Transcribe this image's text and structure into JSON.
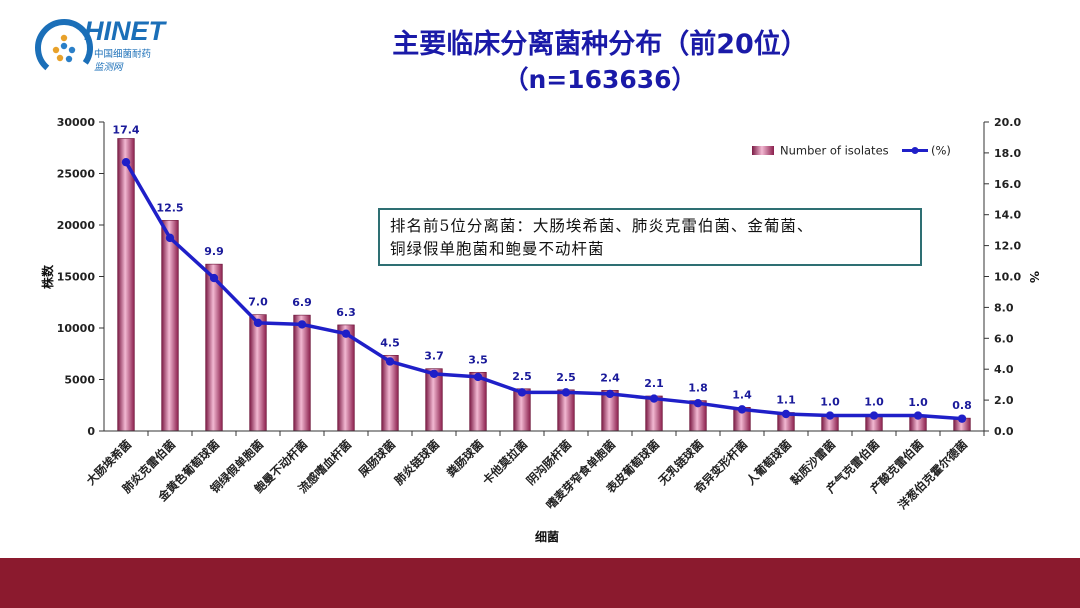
{
  "logo": {
    "brand": "HINET",
    "cn_name": "中国细菌耐药",
    "cn_sub": "监测网"
  },
  "title": {
    "line1": "主要临床分离菌种分布（前20位）",
    "line2": "（n=163636）"
  },
  "annotation": {
    "line1": "排名前5位分离菌：大肠埃希菌、肺炎克雷伯菌、金葡菌、",
    "line2": "铜绿假单胞菌和鲍曼不动杆菌"
  },
  "colors": {
    "bar": "#d98fb0",
    "bar_dark": "#8a1f4c",
    "line": "#1f1fc8",
    "title": "#1a1aa8",
    "band": "#8b1a2e"
  },
  "chart_data": {
    "type": "bar",
    "categories": [
      "大肠埃希菌",
      "肺炎克雷伯菌",
      "金黄色葡萄球菌",
      "铜绿假单胞菌",
      "鲍曼不动杆菌",
      "流感嗜血杆菌",
      "屎肠球菌",
      "肺炎链球菌",
      "粪肠球菌",
      "卡他莫拉菌",
      "阴沟肠杆菌",
      "嗜麦芽窄食单胞菌",
      "表皮葡萄球菌",
      "无乳链球菌",
      "奇异变形杆菌",
      "人葡萄球菌",
      "黏质沙雷菌",
      "产气克雷伯菌",
      "产酸克雷伯菌",
      "洋葱伯克霍尔德菌"
    ],
    "series": [
      {
        "name": "Number of isolates",
        "type": "bar",
        "axis": "left",
        "values": [
          28400,
          20450,
          16200,
          11300,
          11250,
          10300,
          7350,
          6050,
          5700,
          4100,
          4000,
          3950,
          3400,
          2950,
          2300,
          1800,
          1600,
          1600,
          1550,
          1250
        ]
      },
      {
        "name": "(%)",
        "type": "line",
        "axis": "right",
        "values": [
          17.4,
          12.5,
          9.9,
          7.0,
          6.9,
          6.3,
          4.5,
          3.7,
          3.5,
          2.5,
          2.5,
          2.4,
          2.1,
          1.8,
          1.4,
          1.1,
          1.0,
          1.0,
          1.0,
          0.8
        ]
      }
    ],
    "data_labels": [
      "17.4",
      "12.5",
      "9.9",
      "7.0",
      "6.9",
      "6.3",
      "4.5",
      "3.7",
      "3.5",
      "2.5",
      "2.5",
      "2.4",
      "2.1",
      "1.8",
      "1.4",
      "1.1",
      "1.0",
      "1.0",
      "1.0",
      "0.8"
    ],
    "xlabel": "细菌",
    "ylabel": "株数",
    "y2label": "%",
    "ylim": [
      0,
      30000
    ],
    "y2lim": [
      0,
      20
    ],
    "yticks": [
      "0",
      "5000",
      "10000",
      "15000",
      "20000",
      "25000",
      "30000"
    ],
    "y2ticks": [
      "0.0",
      "2.0",
      "4.0",
      "6.0",
      "8.0",
      "10.0",
      "12.0",
      "14.0",
      "16.0",
      "18.0",
      "20.0"
    ],
    "legend_position": "top-right",
    "grid": false
  }
}
